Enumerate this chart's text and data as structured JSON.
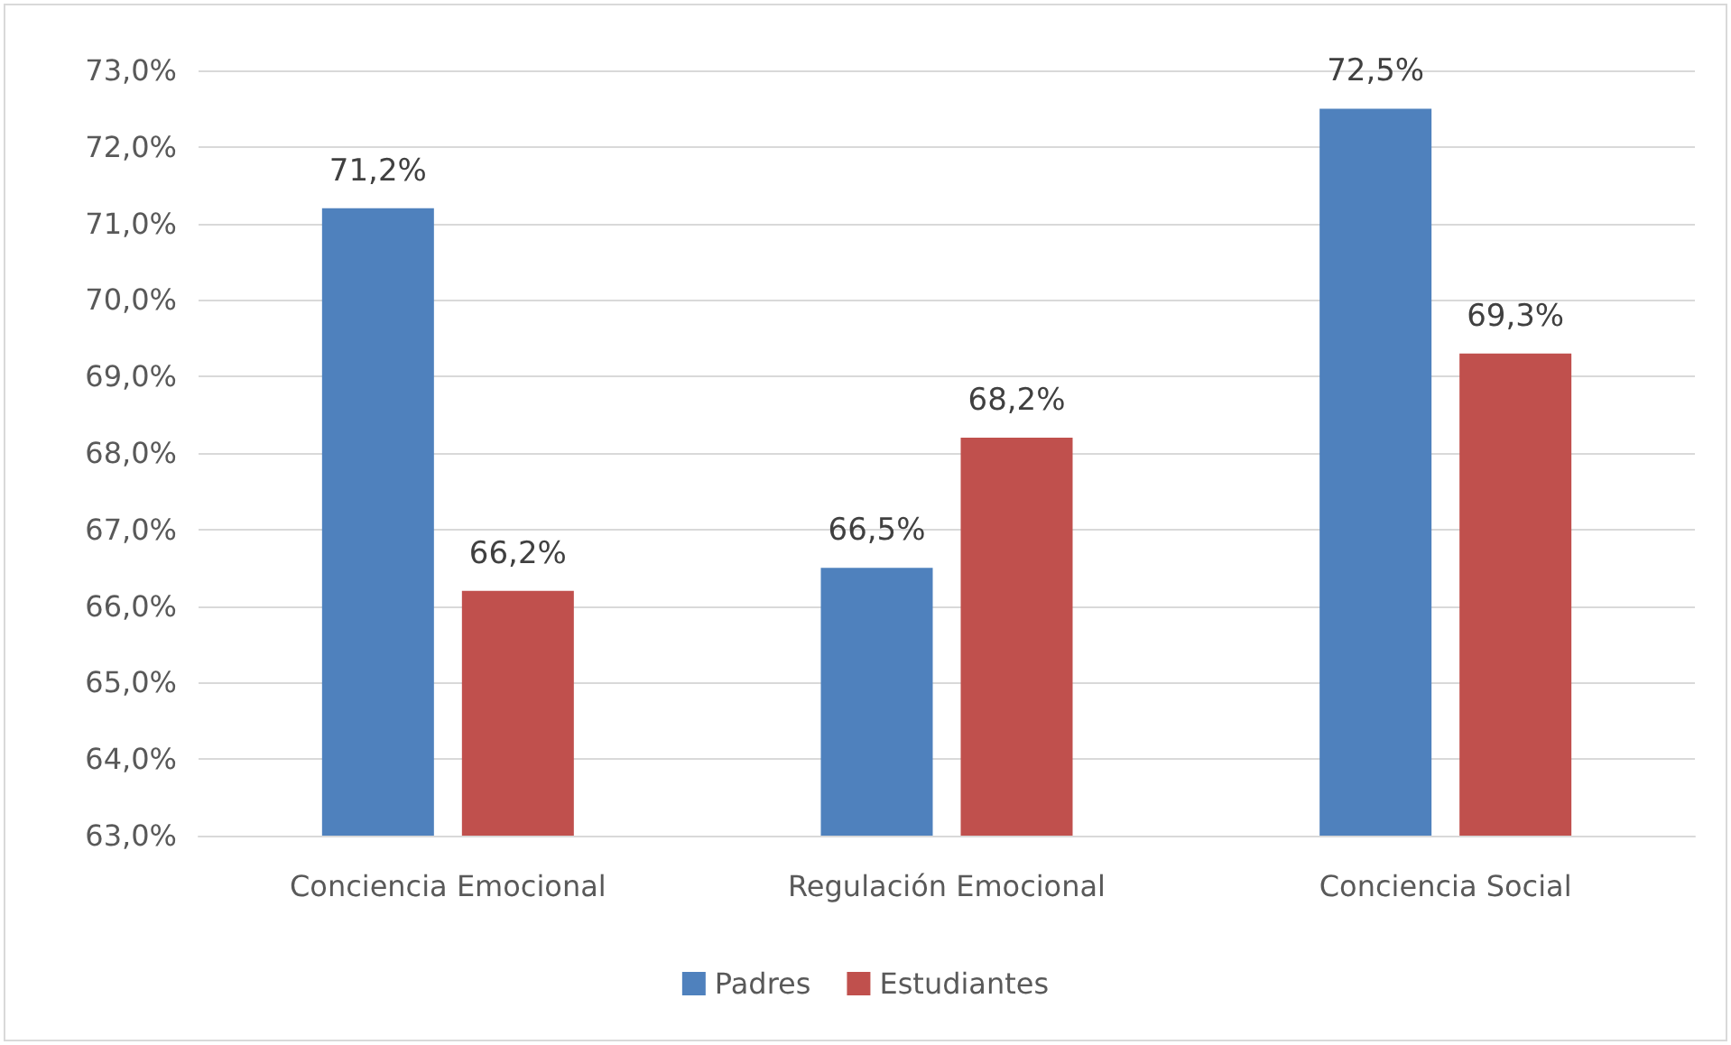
{
  "chart_data": {
    "type": "bar",
    "categories": [
      "Conciencia Emocional",
      "Regulación Emocional",
      "Conciencia Social"
    ],
    "series": [
      {
        "name": "Padres",
        "color": "#4f81bd",
        "values": [
          71.2,
          66.5,
          72.5
        ],
        "value_labels": [
          "71,2%",
          "66,5%",
          "72,5%"
        ]
      },
      {
        "name": "Estudiantes",
        "color": "#c0504d",
        "values": [
          66.2,
          68.2,
          69.3
        ],
        "value_labels": [
          "66,2%",
          "68,2%",
          "69,3%"
        ]
      }
    ],
    "ylim": [
      63,
      73
    ],
    "yticks": [
      {
        "value": 63,
        "label": "63,0%"
      },
      {
        "value": 64,
        "label": "64,0%"
      },
      {
        "value": 65,
        "label": "65,0%"
      },
      {
        "value": 66,
        "label": "66,0%"
      },
      {
        "value": 67,
        "label": "67,0%"
      },
      {
        "value": 68,
        "label": "68,0%"
      },
      {
        "value": 69,
        "label": "69,0%"
      },
      {
        "value": 70,
        "label": "70,0%"
      },
      {
        "value": 71,
        "label": "71,0%"
      },
      {
        "value": 72,
        "label": "72,0%"
      },
      {
        "value": 73,
        "label": "73,0%"
      }
    ],
    "grid": "y",
    "legend": "bottom"
  }
}
